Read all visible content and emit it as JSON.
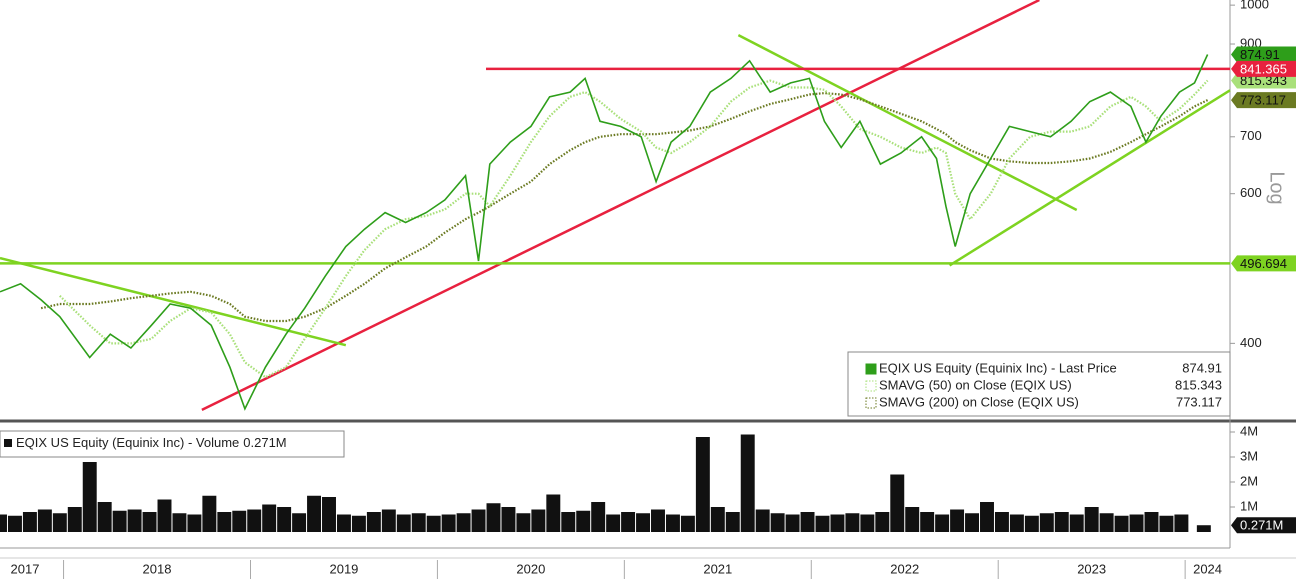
{
  "chart_data": [
    {
      "type": "line",
      "log_scale": true,
      "scale_label": "Log",
      "xlim": [
        2017.66,
        2024.24
      ],
      "ylim": [
        325,
        1014
      ],
      "yticks": [
        400,
        600,
        700,
        900,
        1000
      ],
      "x": [
        2017.66,
        2017.77,
        2017.88,
        2017.98,
        2018.14,
        2018.25,
        2018.36,
        2018.47,
        2018.57,
        2018.68,
        2018.79,
        2018.89,
        2018.97,
        2019.08,
        2019.19,
        2019.29,
        2019.4,
        2019.51,
        2019.61,
        2019.72,
        2019.83,
        2019.94,
        2020.04,
        2020.15,
        2020.22,
        2020.28,
        2020.39,
        2020.5,
        2020.6,
        2020.71,
        2020.79,
        2020.87,
        2020.98,
        2021.09,
        2021.17,
        2021.25,
        2021.35,
        2021.46,
        2021.57,
        2021.67,
        2021.78,
        2021.89,
        2021.99,
        2022.07,
        2022.16,
        2022.26,
        2022.37,
        2022.48,
        2022.59,
        2022.67,
        2022.72,
        2022.77,
        2022.85,
        2022.96,
        2023.06,
        2023.17,
        2023.28,
        2023.39,
        2023.49,
        2023.6,
        2023.71,
        2023.79,
        2023.87,
        2023.97,
        2024.05,
        2024.12
      ],
      "series": [
        {
          "name": "EQIX US Equity (Equinix Inc) - Last Price",
          "color": "#2e9e1a",
          "style": "solid",
          "values": [
            460,
            470,
            450,
            430,
            385,
            410,
            395,
            420,
            445,
            440,
            420,
            375,
            335,
            375,
            410,
            440,
            480,
            520,
            545,
            570,
            555,
            570,
            590,
            630,
            500,
            650,
            690,
            720,
            780,
            790,
            820,
            730,
            720,
            700,
            620,
            690,
            720,
            790,
            820,
            860,
            790,
            810,
            820,
            730,
            680,
            730,
            650,
            670,
            700,
            660,
            580,
            520,
            600,
            660,
            720,
            710,
            700,
            730,
            770,
            790,
            760,
            690,
            740,
            790,
            810,
            874.91
          ]
        },
        {
          "name": "SMAVG (50)  on Close (EQIX US)",
          "color": "#a9e07a",
          "style": "dotted",
          "values": [
            null,
            null,
            null,
            455,
            420,
            400,
            400,
            405,
            425,
            440,
            435,
            410,
            380,
            365,
            375,
            405,
            440,
            480,
            515,
            545,
            560,
            565,
            575,
            600,
            600,
            580,
            630,
            690,
            740,
            780,
            790,
            770,
            735,
            710,
            680,
            670,
            690,
            720,
            770,
            800,
            815,
            800,
            800,
            795,
            760,
            715,
            700,
            680,
            670,
            680,
            670,
            600,
            560,
            600,
            660,
            700,
            710,
            710,
            720,
            760,
            780,
            760,
            730,
            755,
            785,
            815.343
          ]
        },
        {
          "name": "SMAVG (200)  on Close (EQIX US)",
          "color": "#6b7a22",
          "style": "dotted",
          "values": [
            null,
            null,
            440,
            445,
            445,
            448,
            452,
            455,
            458,
            460,
            455,
            445,
            430,
            425,
            425,
            430,
            440,
            455,
            470,
            490,
            505,
            520,
            540,
            560,
            570,
            580,
            600,
            620,
            650,
            675,
            690,
            700,
            705,
            705,
            705,
            708,
            712,
            720,
            735,
            750,
            765,
            775,
            785,
            788,
            785,
            775,
            760,
            745,
            730,
            715,
            705,
            690,
            675,
            660,
            655,
            652,
            652,
            655,
            660,
            672,
            690,
            705,
            720,
            740,
            760,
            773.117
          ]
        }
      ],
      "hlines": [
        {
          "value": 841.365,
          "color": "#e8213f",
          "label_color": "#ffffff",
          "x": 2020.26
        },
        {
          "value": 496.694,
          "color": "#7ed321",
          "label_color": "#111111",
          "x": 2017.66
        }
      ],
      "trendlines": [
        {
          "color": "#e8213f",
          "x": [
            2018.74,
            2023.22
          ],
          "y": [
            334,
            1014
          ]
        },
        {
          "color": "#7ed321",
          "x": [
            2017.66,
            2019.51
          ],
          "y": [
            504,
            398
          ]
        },
        {
          "color": "#7ed321",
          "x": [
            2021.61,
            2023.42
          ],
          "y": [
            922,
            574
          ]
        },
        {
          "color": "#7ed321",
          "x": [
            2022.74,
            2024.24
          ],
          "y": [
            494,
            794
          ]
        }
      ]
    },
    {
      "type": "bar",
      "name": "EQIX US Equity (Equinix Inc) - Volume",
      "color": "#111111",
      "last": {
        "value": 271000,
        "label": "0.271M"
      },
      "xlim": [
        2017.66,
        2024.24
      ],
      "xticks": [
        2017,
        2018,
        2019,
        2020,
        2021,
        2022,
        2023,
        2024
      ],
      "ylim": [
        0,
        4280000
      ],
      "yticks": [
        {
          "value": 1000000,
          "label": "1M"
        },
        {
          "value": 2000000,
          "label": "2M"
        },
        {
          "value": 3000000,
          "label": "3M"
        },
        {
          "value": 4000000,
          "label": "4M"
        }
      ],
      "x": [
        2017.66,
        2017.74,
        2017.82,
        2017.9,
        2017.98,
        2018.06,
        2018.14,
        2018.22,
        2018.3,
        2018.38,
        2018.46,
        2018.54,
        2018.62,
        2018.7,
        2018.78,
        2018.86,
        2018.94,
        2019.02,
        2019.1,
        2019.18,
        2019.26,
        2019.34,
        2019.42,
        2019.5,
        2019.58,
        2019.66,
        2019.74,
        2019.82,
        2019.9,
        2019.98,
        2020.06,
        2020.14,
        2020.22,
        2020.3,
        2020.38,
        2020.46,
        2020.54,
        2020.62,
        2020.7,
        2020.78,
        2020.86,
        2020.94,
        2021.02,
        2021.1,
        2021.18,
        2021.26,
        2021.34,
        2021.42,
        2021.5,
        2021.58,
        2021.66,
        2021.74,
        2021.82,
        2021.9,
        2021.98,
        2022.06,
        2022.14,
        2022.22,
        2022.3,
        2022.38,
        2022.46,
        2022.54,
        2022.62,
        2022.7,
        2022.78,
        2022.86,
        2022.94,
        2023.02,
        2023.1,
        2023.18,
        2023.26,
        2023.34,
        2023.42,
        2023.5,
        2023.58,
        2023.66,
        2023.74,
        2023.82,
        2023.9,
        2023.98,
        2024.1
      ],
      "values": [
        700000,
        650000,
        800000,
        900000,
        750000,
        1000000,
        2800000,
        1200000,
        850000,
        900000,
        800000,
        1300000,
        750000,
        700000,
        1450000,
        800000,
        850000,
        900000,
        1100000,
        1000000,
        750000,
        1450000,
        1400000,
        700000,
        650000,
        800000,
        900000,
        700000,
        750000,
        650000,
        700000,
        750000,
        900000,
        1150000,
        1000000,
        750000,
        900000,
        1500000,
        800000,
        850000,
        1200000,
        700000,
        800000,
        750000,
        900000,
        700000,
        650000,
        3800000,
        1000000,
        800000,
        3900000,
        900000,
        750000,
        700000,
        800000,
        650000,
        700000,
        750000,
        700000,
        800000,
        2300000,
        1000000,
        800000,
        700000,
        900000,
        750000,
        1200000,
        800000,
        700000,
        650000,
        750000,
        800000,
        700000,
        1000000,
        750000,
        650000,
        700000,
        800000,
        650000,
        700000,
        271000
      ]
    }
  ]
}
